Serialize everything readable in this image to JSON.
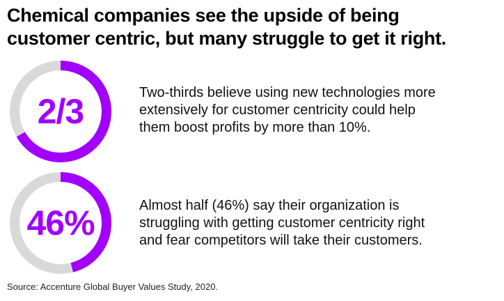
{
  "title_line1": "Chemical companies see the upside of being",
  "title_line2": "customer centric, but many struggle to get it right.",
  "colors": {
    "accent": "#a100ff",
    "track": "#d9d9d9"
  },
  "chart_data": [
    {
      "type": "pie",
      "label": "2/3",
      "value": 0.6667,
      "text": [
        "Two-thirds believe using new technologies more",
        "extensively for customer centricity could help",
        "them boost profits by more than 10%."
      ]
    },
    {
      "type": "pie",
      "label": "46%",
      "value": 0.46,
      "text": [
        "Almost half (46%) say their organization is",
        "struggling with getting customer centricity right",
        "and fear competitors will take their customers."
      ]
    }
  ],
  "source": "Source: Accenture Global Buyer Values Study, 2020."
}
